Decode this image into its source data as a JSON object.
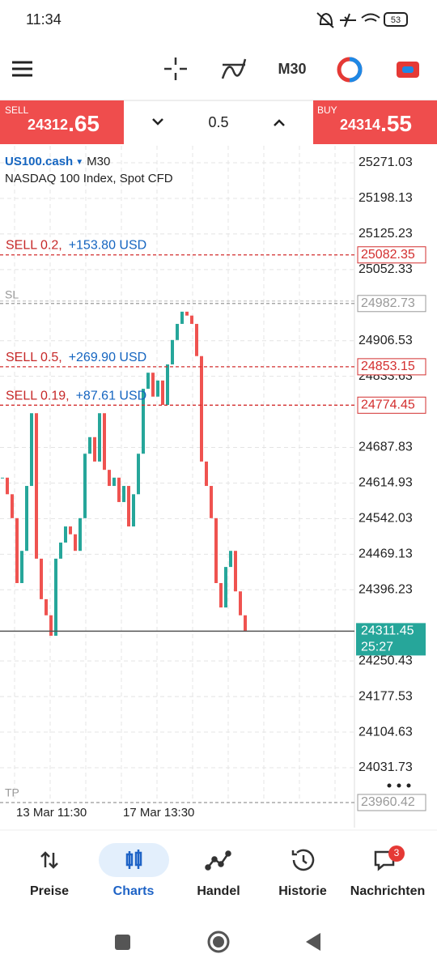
{
  "status": {
    "time": "11:34",
    "battery": "53"
  },
  "toolbar": {
    "timeframe": "M30"
  },
  "trade": {
    "sell": {
      "label": "SELL",
      "main": "24312",
      "fraction": ".65"
    },
    "lot": "0.5",
    "buy": {
      "label": "BUY",
      "main": "24314",
      "fraction": ".55"
    }
  },
  "chart": {
    "symbol": "US100.cash",
    "timeframe": "M30",
    "description": "NASDAQ 100 Index, Spot CFD",
    "ylim": [
      23958.7,
      25305.9
    ],
    "yticks": [
      25271.03,
      25198.13,
      25125.23,
      25052.33,
      24906.53,
      24833.63,
      24687.83,
      24614.93,
      24542.03,
      24469.13,
      24396.23,
      24250.43,
      24177.53,
      24104.63,
      24031.73
    ],
    "closes": [
      24626,
      24592,
      24543,
      24410,
      24476,
      24609,
      24758,
      24460,
      24377,
      24344,
      24302,
      24460,
      24493,
      24526,
      24510,
      24476,
      24543,
      24675,
      24709,
      24659,
      24758,
      24642,
      24609,
      24626,
      24576,
      24609,
      24526,
      24592,
      24675,
      24808,
      24841,
      24792,
      24825,
      24775,
      24858,
      24908,
      24941,
      24966,
      24958,
      24941,
      24875,
      24659,
      24609,
      24543,
      24410,
      24360,
      24443,
      24476,
      24393,
      24344,
      24311
    ],
    "positions": [
      {
        "label": "SELL 0.2,",
        "profit": "+153.80 USD",
        "price": 25082.35
      },
      {
        "label": "SELL 0.5,",
        "profit": "+269.90 USD",
        "price": 24853.15
      },
      {
        "label": "SELL 0.19,",
        "profit": "+87.61 USD",
        "price": 24774.45
      }
    ],
    "sl": {
      "label": "SL",
      "price": 24982.73
    },
    "tp": {
      "label": "TP",
      "price": 23960.42
    },
    "current": {
      "price": 24311.45,
      "countdown": "25:27"
    },
    "xlabels": [
      "13 Mar 11:30",
      "17 Mar 13:30"
    ]
  },
  "nav": {
    "items": [
      "Preise",
      "Charts",
      "Handel",
      "Historie",
      "Nachrichten"
    ],
    "badge": "3"
  }
}
